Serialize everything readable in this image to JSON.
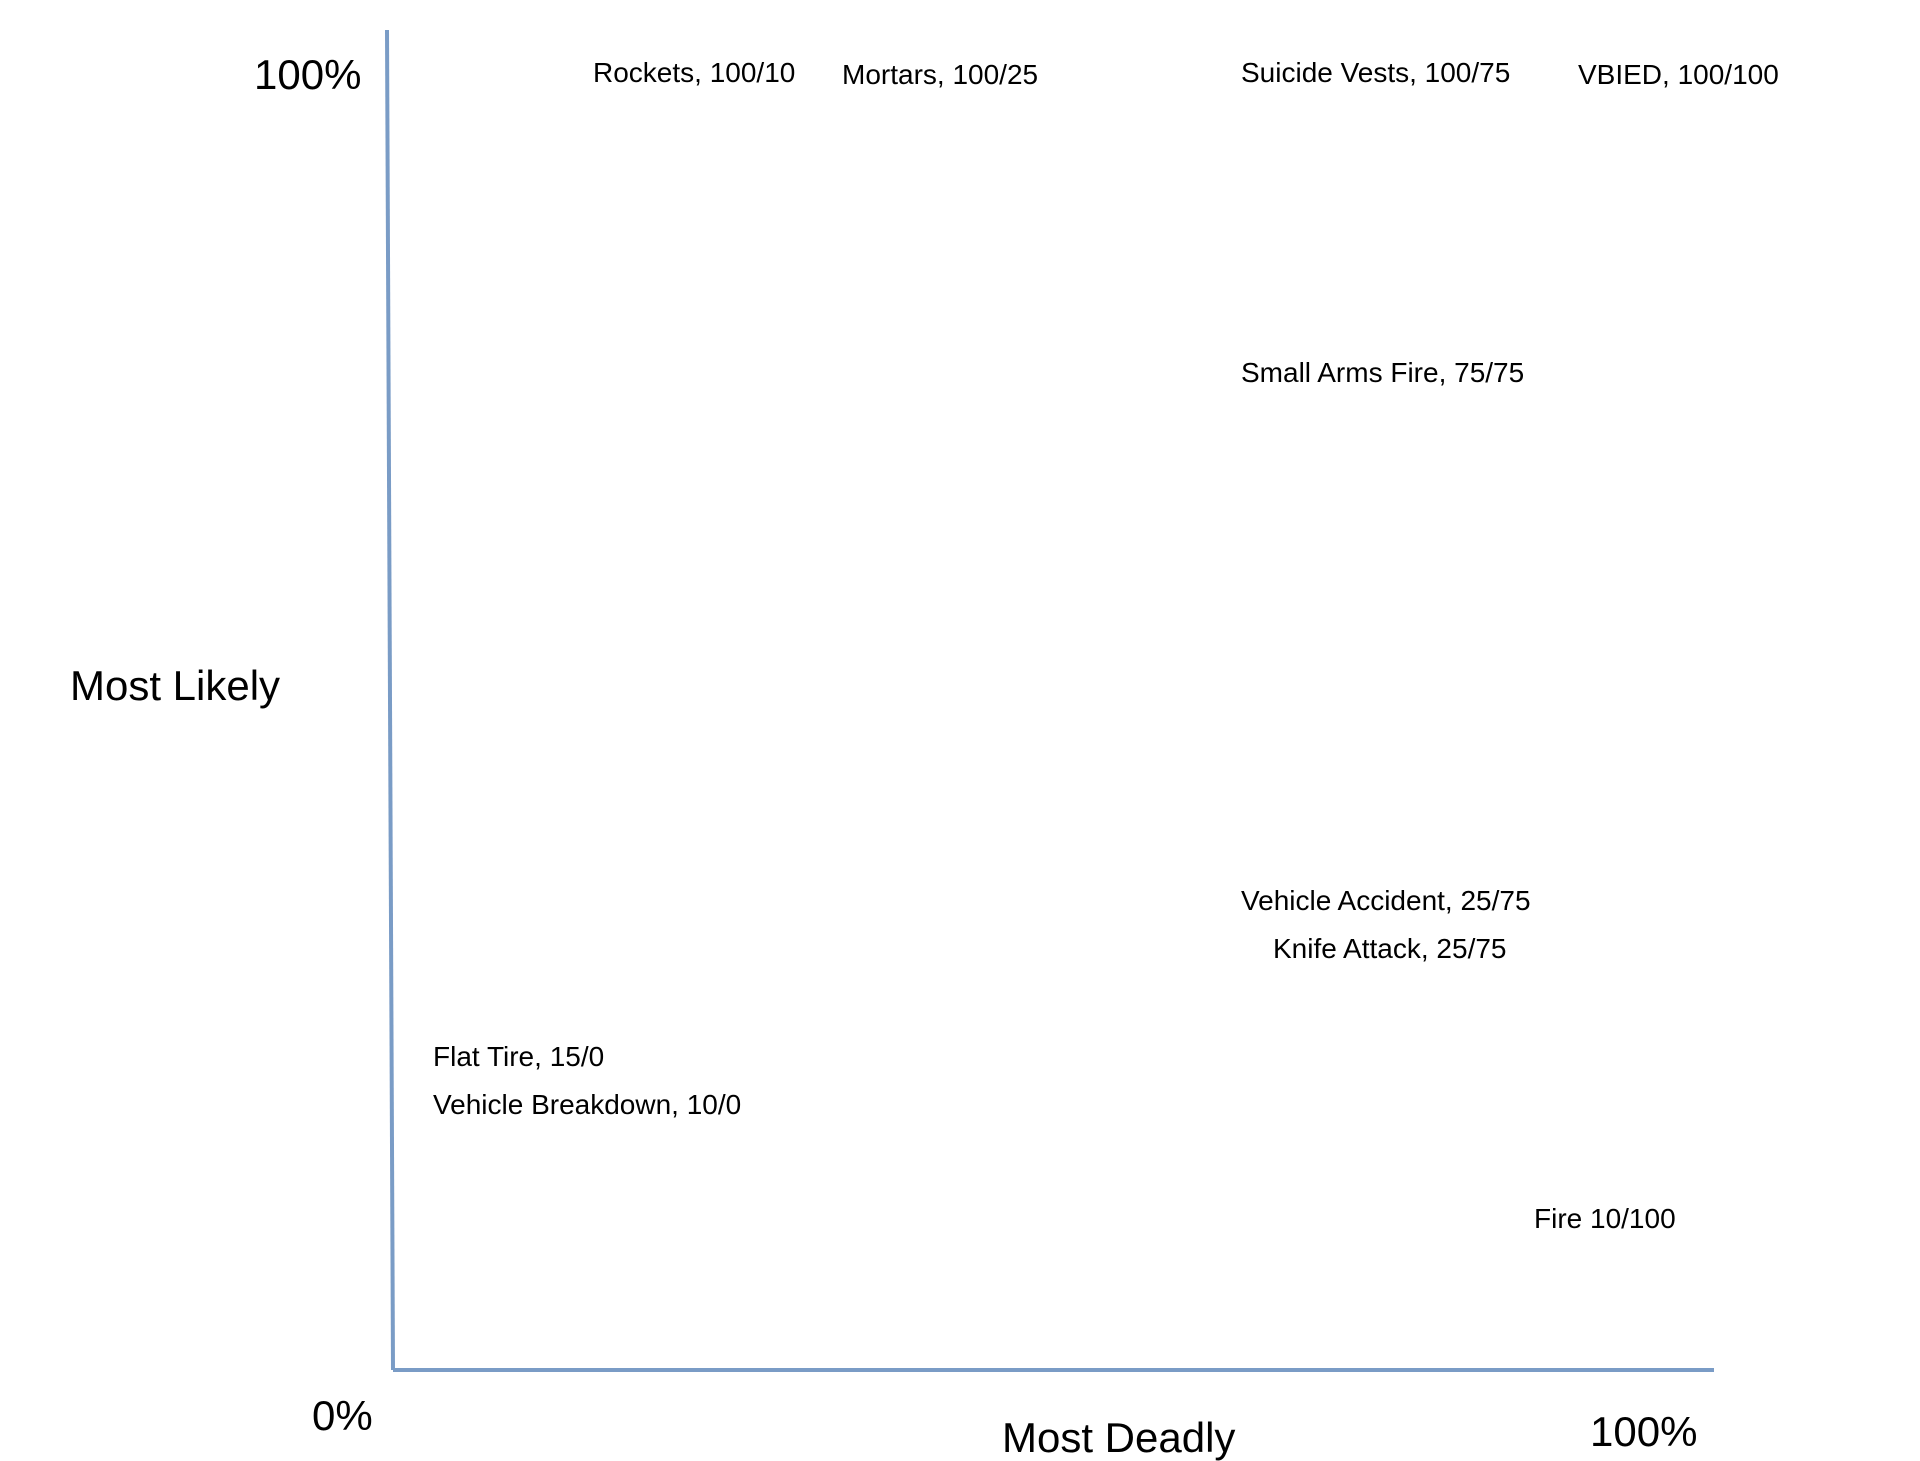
{
  "chart_data": {
    "type": "scatter",
    "xlabel": "Most Deadly",
    "ylabel": "Most Likely",
    "tick_labels": {
      "origin": "0%",
      "x_max": "100%",
      "y_max": "100%"
    },
    "xlim": [
      0,
      100
    ],
    "ylim": [
      0,
      100
    ],
    "grid": false,
    "axis_color": "#7a9cc6",
    "points": [
      {
        "label": "Rockets, 100/10",
        "likely": 100,
        "deadly": 10
      },
      {
        "label": "Mortars, 100/25",
        "likely": 100,
        "deadly": 25
      },
      {
        "label": "Suicide Vests, 100/75",
        "likely": 100,
        "deadly": 75
      },
      {
        "label": "VBIED, 100/100",
        "likely": 100,
        "deadly": 100
      },
      {
        "label": "Small Arms Fire, 75/75",
        "likely": 75,
        "deadly": 75
      },
      {
        "label": "Vehicle Accident, 25/75",
        "likely": 25,
        "deadly": 75
      },
      {
        "label": "Knife Attack, 25/75",
        "likely": 25,
        "deadly": 75
      },
      {
        "label": "Flat Tire, 15/0",
        "likely": 15,
        "deadly": 0
      },
      {
        "label": "Vehicle Breakdown, 10/0",
        "likely": 10,
        "deadly": 0
      },
      {
        "label": "Fire 10/100",
        "likely": 10,
        "deadly": 100
      }
    ]
  }
}
